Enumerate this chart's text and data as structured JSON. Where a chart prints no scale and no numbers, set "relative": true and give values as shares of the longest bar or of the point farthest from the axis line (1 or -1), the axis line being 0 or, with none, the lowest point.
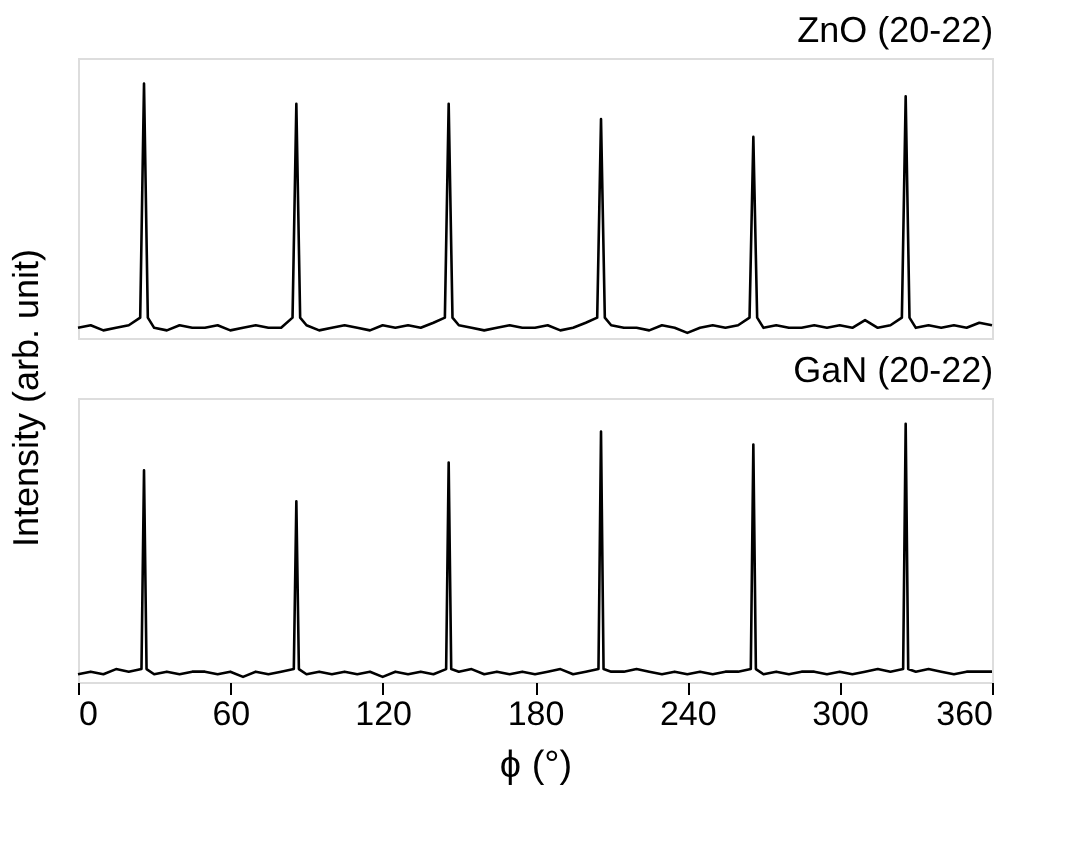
{
  "chart_data": [
    {
      "type": "line",
      "title": "ZnO (20-22)",
      "ylabel": "Intensity (arb. unit)",
      "relative": true,
      "color": "#000000",
      "xlim": [
        0,
        360
      ],
      "xticks": [
        0,
        60,
        120,
        180,
        240,
        300,
        360
      ],
      "tick_labels": false,
      "x": [
        0,
        5,
        10,
        15,
        20,
        24.5,
        26,
        27.5,
        30,
        35,
        40,
        45,
        50,
        55,
        60,
        65,
        70,
        75,
        80,
        84.5,
        86,
        87.5,
        90,
        95,
        100,
        105,
        110,
        115,
        120,
        125,
        130,
        135,
        140,
        144.5,
        146,
        147.5,
        150,
        155,
        160,
        165,
        170,
        175,
        180,
        185,
        190,
        195,
        200,
        204.5,
        206,
        207.5,
        210,
        215,
        220,
        225,
        230,
        235,
        240,
        245,
        250,
        255,
        260,
        264.5,
        266,
        267.5,
        270,
        275,
        280,
        285,
        290,
        295,
        300,
        305,
        310,
        315,
        320,
        324.5,
        326,
        327.5,
        330,
        335,
        340,
        345,
        350,
        355,
        360
      ],
      "values": [
        0.04,
        0.05,
        0.03,
        0.04,
        0.05,
        0.08,
        1,
        0.08,
        0.04,
        0.03,
        0.05,
        0.04,
        0.04,
        0.05,
        0.03,
        0.04,
        0.05,
        0.04,
        0.04,
        0.08,
        0.92,
        0.08,
        0.05,
        0.03,
        0.04,
        0.05,
        0.04,
        0.03,
        0.05,
        0.04,
        0.05,
        0.04,
        0.06,
        0.08,
        0.92,
        0.08,
        0.05,
        0.04,
        0.03,
        0.04,
        0.05,
        0.04,
        0.04,
        0.05,
        0.03,
        0.04,
        0.06,
        0.08,
        0.86,
        0.08,
        0.05,
        0.04,
        0.04,
        0.03,
        0.05,
        0.04,
        0.02,
        0.04,
        0.05,
        0.04,
        0.05,
        0.08,
        0.79,
        0.08,
        0.04,
        0.05,
        0.04,
        0.04,
        0.05,
        0.04,
        0.05,
        0.04,
        0.07,
        0.04,
        0.05,
        0.08,
        0.95,
        0.08,
        0.04,
        0.05,
        0.04,
        0.05,
        0.04,
        0.06,
        0.05
      ]
    },
    {
      "type": "line",
      "title": "GaN (20-22)",
      "xlabel": "ϕ (°)",
      "relative": true,
      "color": "#000000",
      "xlim": [
        0,
        360
      ],
      "xticks": [
        0,
        60,
        120,
        180,
        240,
        300,
        360
      ],
      "tick_labels": "x",
      "x": [
        0,
        5,
        10,
        15,
        20,
        25,
        26,
        27,
        30,
        35,
        40,
        45,
        50,
        55,
        60,
        65,
        70,
        75,
        80,
        85,
        86,
        87,
        90,
        95,
        100,
        105,
        110,
        115,
        120,
        125,
        130,
        135,
        140,
        145,
        146,
        147,
        150,
        155,
        160,
        165,
        170,
        175,
        180,
        185,
        190,
        195,
        200,
        205,
        206,
        207,
        210,
        215,
        220,
        225,
        230,
        235,
        240,
        245,
        250,
        255,
        260,
        265,
        266,
        267,
        270,
        275,
        280,
        285,
        290,
        295,
        300,
        305,
        310,
        315,
        320,
        325,
        326,
        327,
        330,
        335,
        340,
        345,
        350,
        355,
        360
      ],
      "values": [
        0.03,
        0.04,
        0.03,
        0.05,
        0.04,
        0.05,
        0.82,
        0.05,
        0.03,
        0.04,
        0.03,
        0.04,
        0.04,
        0.03,
        0.04,
        0.02,
        0.04,
        0.03,
        0.04,
        0.05,
        0.7,
        0.05,
        0.03,
        0.04,
        0.03,
        0.04,
        0.03,
        0.04,
        0.02,
        0.04,
        0.03,
        0.04,
        0.03,
        0.05,
        0.85,
        0.05,
        0.04,
        0.05,
        0.03,
        0.04,
        0.03,
        0.04,
        0.03,
        0.04,
        0.05,
        0.03,
        0.04,
        0.05,
        0.97,
        0.05,
        0.04,
        0.04,
        0.05,
        0.04,
        0.03,
        0.04,
        0.03,
        0.04,
        0.03,
        0.04,
        0.04,
        0.05,
        0.92,
        0.05,
        0.03,
        0.04,
        0.03,
        0.04,
        0.04,
        0.03,
        0.04,
        0.03,
        0.04,
        0.05,
        0.04,
        0.05,
        1,
        0.05,
        0.04,
        0.05,
        0.04,
        0.03,
        0.04,
        0.04,
        0.04
      ]
    }
  ]
}
